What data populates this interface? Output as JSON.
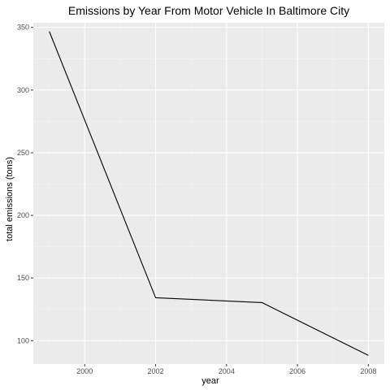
{
  "chart_data": {
    "type": "line",
    "title": "Emissions by Year From Motor Vehicle In Baltimore City",
    "xlabel": "year",
    "ylabel": "total emissions (tons)",
    "x": [
      1999,
      2002,
      2005,
      2008
    ],
    "series": [
      {
        "values": [
          346.8,
          134.3,
          130.4,
          88.3
        ]
      }
    ],
    "xlim": [
      1998.55,
      2008.45
    ],
    "ylim": [
      81.4,
      353.7
    ],
    "x_ticks": [
      2000,
      2002,
      2004,
      2006,
      2008
    ],
    "x_tick_labels": [
      "2000",
      "2002",
      "2004",
      "2006",
      "2008"
    ],
    "y_ticks": [
      100,
      150,
      200,
      250,
      300,
      350
    ],
    "y_tick_labels": [
      "100",
      "150",
      "200",
      "250",
      "300",
      "350"
    ],
    "grid": true,
    "legend": "none",
    "colors": {
      "panel_background": "#ebebeb",
      "grid_major": "#ffffff",
      "grid_minor": "#f5f5f5",
      "line": "#000000"
    }
  }
}
